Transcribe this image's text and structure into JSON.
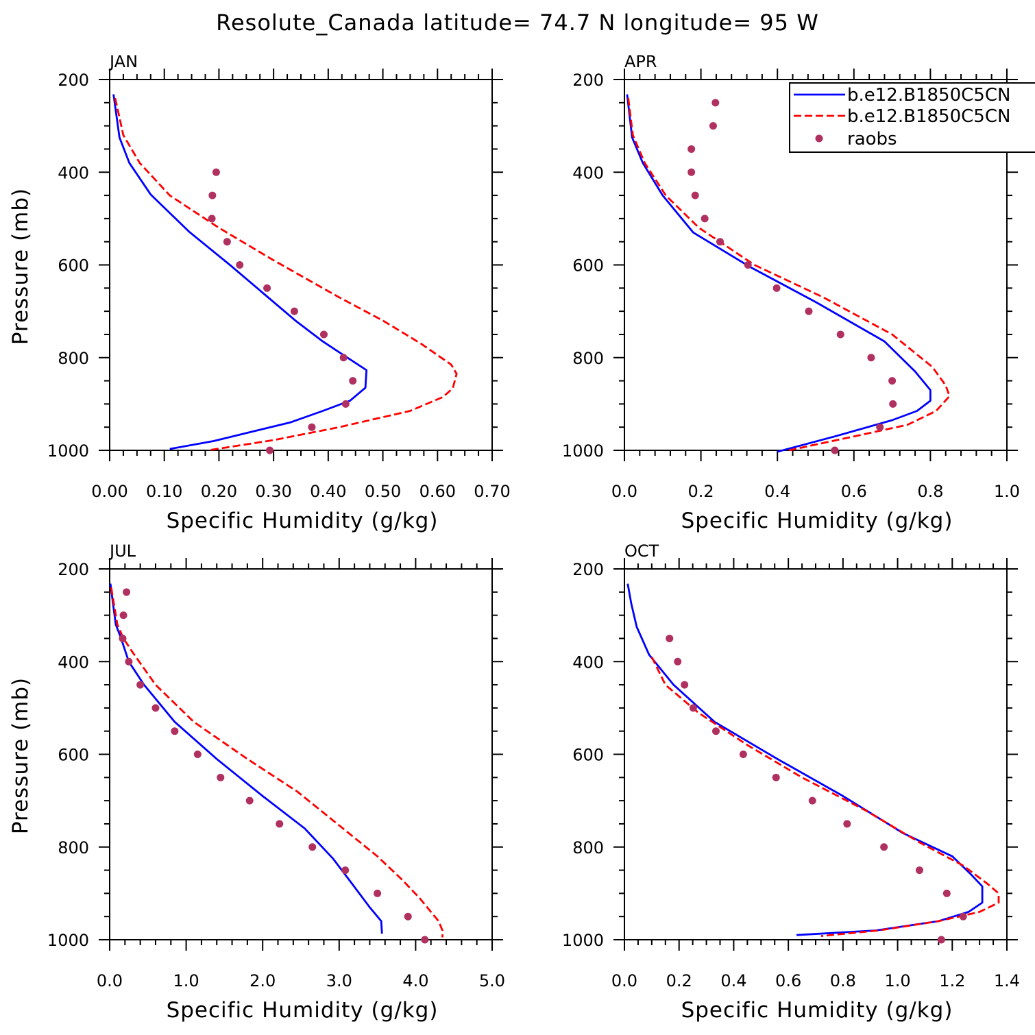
{
  "figure_title": "Resolute_Canada  latitude= 74.7 N longitude= 95 W",
  "legend": {
    "entries": [
      {
        "label": "b.e12.B1850C5CN",
        "style": "solid",
        "color": "#0000ff"
      },
      {
        "label": "b.e12.B1850C5CN",
        "style": "dashed",
        "color": "#ff0000"
      },
      {
        "label": "raobs",
        "style": "marker",
        "color": "#b03060"
      }
    ]
  },
  "chart_data": [
    {
      "type": "line",
      "panel": "JAN",
      "xlabel": "Specific Humidity (g/kg)",
      "ylabel": "Pressure (mb)",
      "xlim": [
        0,
        0.7
      ],
      "ylim": [
        200,
        1000
      ],
      "xticks": [
        "0.00",
        "0.10",
        "0.20",
        "0.30",
        "0.40",
        "0.50",
        "0.60",
        "0.70"
      ],
      "yticks": [
        "200",
        "400",
        "600",
        "800",
        "1000"
      ],
      "series": [
        {
          "name": "b.e12.B1850C5CN",
          "style": "solid",
          "color": "#0000ff",
          "x": [
            0.007,
            0.018,
            0.036,
            0.075,
            0.145,
            0.22,
            0.285,
            0.34,
            0.39,
            0.435,
            0.47,
            0.468,
            0.44,
            0.39,
            0.33,
            0.26,
            0.19,
            0.11
          ],
          "y": [
            232,
            325,
            380,
            448,
            528,
            600,
            665,
            720,
            765,
            800,
            827,
            865,
            893,
            915,
            940,
            960,
            980,
            997
          ]
        },
        {
          "name": "b.e12.B1850C5CN",
          "style": "dashed",
          "color": "#ff0000",
          "x": [
            0.01,
            0.025,
            0.055,
            0.11,
            0.2,
            0.3,
            0.42,
            0.5,
            0.57,
            0.625,
            0.635,
            0.628,
            0.61,
            0.55,
            0.42,
            0.3,
            0.18
          ],
          "y": [
            240,
            320,
            380,
            450,
            520,
            590,
            670,
            720,
            770,
            815,
            835,
            866,
            885,
            915,
            950,
            978,
            1000
          ]
        },
        {
          "name": "raobs",
          "style": "marker",
          "color": "#b03060",
          "x": [
            0.195,
            0.188,
            0.187,
            0.215,
            0.238,
            0.288,
            0.338,
            0.392,
            0.428,
            0.445,
            0.432,
            0.37,
            0.293
          ],
          "y": [
            400,
            450,
            500,
            550,
            600,
            650,
            700,
            750,
            800,
            850,
            900,
            950,
            1000
          ]
        }
      ]
    },
    {
      "type": "line",
      "panel": "APR",
      "xlabel": "Specific Humidity (g/kg)",
      "ylabel": "",
      "xlim": [
        0,
        1.0
      ],
      "ylim": [
        200,
        1000
      ],
      "xticks": [
        "0.0",
        "0.2",
        "0.4",
        "0.6",
        "0.8",
        "1.0"
      ],
      "yticks": [
        "200",
        "400",
        "600",
        "800",
        "1000"
      ],
      "series": [
        {
          "name": "b.e12.B1850C5CN",
          "style": "solid",
          "color": "#0000ff",
          "x": [
            0.007,
            0.02,
            0.048,
            0.1,
            0.18,
            0.33,
            0.5,
            0.68,
            0.76,
            0.8,
            0.8,
            0.765,
            0.7,
            0.55,
            0.4
          ],
          "y": [
            232,
            325,
            380,
            450,
            530,
            605,
            680,
            765,
            830,
            870,
            893,
            915,
            935,
            970,
            1003
          ]
        },
        {
          "name": "b.e12.B1850C5CN",
          "style": "dashed",
          "color": "#ff0000",
          "x": [
            0.01,
            0.022,
            0.053,
            0.108,
            0.195,
            0.34,
            0.52,
            0.7,
            0.805,
            0.84,
            0.85,
            0.815,
            0.74,
            0.6,
            0.43
          ],
          "y": [
            240,
            320,
            380,
            450,
            520,
            600,
            670,
            750,
            820,
            860,
            883,
            915,
            945,
            970,
            1000
          ]
        },
        {
          "name": "raobs",
          "style": "marker",
          "color": "#b03060",
          "x": [
            0.238,
            0.232,
            0.175,
            0.175,
            0.185,
            0.21,
            0.25,
            0.323,
            0.398,
            0.482,
            0.565,
            0.645,
            0.7,
            0.702,
            0.668,
            0.55
          ],
          "y": [
            250,
            300,
            350,
            400,
            450,
            500,
            550,
            600,
            650,
            700,
            750,
            800,
            850,
            900,
            950,
            1000
          ]
        }
      ]
    },
    {
      "type": "line",
      "panel": "JUL",
      "xlabel": "Specific Humidity (g/kg)",
      "ylabel": "Pressure (mb)",
      "xlim": [
        0,
        5.0
      ],
      "ylim": [
        200,
        1000
      ],
      "xticks": [
        "0.0",
        "1.0",
        "2.0",
        "3.0",
        "4.0",
        "5.0"
      ],
      "yticks": [
        "200",
        "400",
        "600",
        "800",
        "1000"
      ],
      "series": [
        {
          "name": "b.e12.B1850C5CN",
          "style": "solid",
          "color": "#0000ff",
          "x": [
            0.01,
            0.08,
            0.15,
            0.25,
            0.45,
            0.85,
            1.4,
            2.0,
            2.55,
            2.92,
            3.15,
            3.4,
            3.55,
            3.56
          ],
          "y": [
            232,
            320,
            350,
            400,
            450,
            530,
            610,
            690,
            760,
            825,
            875,
            930,
            960,
            987
          ]
        },
        {
          "name": "b.e12.B1850C5CN",
          "style": "dashed",
          "color": "#ff0000",
          "x": [
            0.02,
            0.1,
            0.18,
            0.3,
            0.6,
            1.1,
            1.8,
            2.45,
            3.05,
            3.5,
            3.82,
            4.05,
            4.2,
            4.3,
            4.35,
            4.35
          ],
          "y": [
            240,
            320,
            350,
            380,
            450,
            530,
            610,
            680,
            760,
            820,
            870,
            910,
            940,
            960,
            980,
            995
          ]
        },
        {
          "name": "raobs",
          "style": "marker",
          "color": "#b03060",
          "x": [
            0.22,
            0.18,
            0.17,
            0.25,
            0.4,
            0.6,
            0.85,
            1.15,
            1.45,
            1.83,
            2.22,
            2.65,
            3.08,
            3.5,
            3.9,
            4.12
          ],
          "y": [
            250,
            300,
            350,
            400,
            450,
            500,
            550,
            600,
            650,
            700,
            750,
            800,
            850,
            900,
            950,
            1000
          ]
        }
      ]
    },
    {
      "type": "line",
      "panel": "OCT",
      "xlabel": "Specific Humidity (g/kg)",
      "ylabel": "",
      "xlim": [
        0,
        1.4
      ],
      "ylim": [
        200,
        1000
      ],
      "xticks": [
        "0.0",
        "0.2",
        "0.4",
        "0.6",
        "0.8",
        "1.0",
        "1.2",
        "1.4"
      ],
      "yticks": [
        "200",
        "400",
        "600",
        "800",
        "1000"
      ],
      "series": [
        {
          "name": "b.e12.B1850C5CN",
          "style": "solid",
          "color": "#0000ff",
          "x": [
            0.012,
            0.025,
            0.045,
            0.09,
            0.18,
            0.33,
            0.56,
            0.8,
            1.02,
            1.2,
            1.27,
            1.31,
            1.31,
            1.26,
            1.15,
            0.92,
            0.63
          ],
          "y": [
            232,
            275,
            325,
            385,
            450,
            530,
            610,
            690,
            770,
            820,
            860,
            885,
            920,
            940,
            960,
            980,
            990
          ]
        },
        {
          "name": "b.e12.B1850C5CN",
          "style": "dashed",
          "color": "#ff0000",
          "x": [
            0.1,
            0.15,
            0.27,
            0.45,
            0.65,
            0.88,
            1.08,
            1.24,
            1.33,
            1.37,
            1.37,
            1.3,
            1.15,
            0.93,
            0.72
          ],
          "y": [
            390,
            450,
            510,
            580,
            650,
            720,
            790,
            840,
            880,
            900,
            920,
            940,
            960,
            980,
            992
          ]
        },
        {
          "name": "raobs",
          "style": "marker",
          "color": "#b03060",
          "x": [
            0.165,
            0.195,
            0.22,
            0.252,
            0.335,
            0.435,
            0.555,
            0.688,
            0.815,
            0.95,
            1.08,
            1.18,
            1.24,
            1.16
          ],
          "y": [
            350,
            400,
            450,
            500,
            550,
            600,
            650,
            700,
            750,
            800,
            850,
            900,
            950,
            1000
          ]
        }
      ]
    }
  ]
}
